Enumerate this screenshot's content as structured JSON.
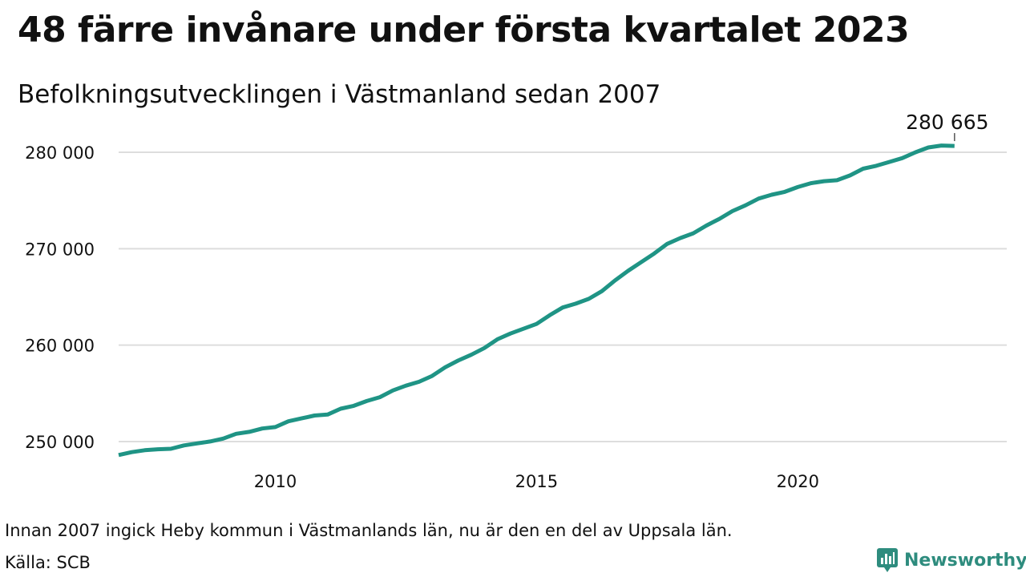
{
  "title": "48 färre invånare under första kvartalet 2023",
  "subtitle": "Befolkningsutvecklingen i Västmanland sedan 2007",
  "footnote": "Innan 2007 ingick Heby kommun i Västmanlands län, nu är den en del av Uppsala län.",
  "source": "Källa: SCB",
  "brand": {
    "name": "Newsworthy",
    "icon": "newsworthy-logo-icon",
    "color": "#2e8c7e"
  },
  "colors": {
    "line": "#1f9485",
    "grid": "#dddddd",
    "text": "#111111"
  },
  "chart_data": {
    "type": "line",
    "title": "",
    "xlabel": "",
    "ylabel": "",
    "xlim": [
      2007.0,
      2024.0
    ],
    "ylim": [
      248000,
      282000
    ],
    "x_ticks": [
      2010,
      2015,
      2020
    ],
    "x_tick_labels": [
      "2010",
      "2015",
      "2020"
    ],
    "y_ticks": [
      250000,
      260000,
      270000,
      280000
    ],
    "y_tick_labels": [
      "250 000",
      "260 000",
      "270 000",
      "280 000"
    ],
    "grid": "horizontal",
    "legend": "none",
    "annotation": {
      "x": 2023.0,
      "y": 280665,
      "text": "280 665"
    },
    "series": [
      {
        "x": [
          2007.0,
          2007.25,
          2007.5,
          2007.75,
          2008.0,
          2008.25,
          2008.5,
          2008.75,
          2009.0,
          2009.25,
          2009.5,
          2009.75,
          2010.0,
          2010.25,
          2010.5,
          2010.75,
          2011.0,
          2011.25,
          2011.5,
          2011.75,
          2012.0,
          2012.25,
          2012.5,
          2012.75,
          2013.0,
          2013.25,
          2013.5,
          2013.75,
          2014.0,
          2014.25,
          2014.5,
          2014.75,
          2015.0,
          2015.25,
          2015.5,
          2015.75,
          2016.0,
          2016.25,
          2016.5,
          2016.75,
          2017.0,
          2017.25,
          2017.5,
          2017.75,
          2018.0,
          2018.25,
          2018.5,
          2018.75,
          2019.0,
          2019.25,
          2019.5,
          2019.75,
          2020.0,
          2020.25,
          2020.5,
          2020.75,
          2021.0,
          2021.25,
          2021.5,
          2021.75,
          2022.0,
          2022.25,
          2022.5,
          2022.75,
          2023.0
        ],
        "values": [
          248600,
          248900,
          249100,
          249200,
          249250,
          249600,
          249800,
          250000,
          250300,
          250800,
          251000,
          251350,
          251500,
          252100,
          252400,
          252700,
          252800,
          253400,
          253700,
          254200,
          254600,
          255300,
          255800,
          256200,
          256800,
          257700,
          258400,
          259000,
          259700,
          260600,
          261200,
          261700,
          262200,
          263100,
          263900,
          264300,
          264800,
          265600,
          266700,
          267700,
          268600,
          269500,
          270500,
          271100,
          271600,
          272400,
          273100,
          273900,
          274500,
          275200,
          275600,
          275900,
          276400,
          276800,
          277000,
          277100,
          277600,
          278300,
          278600,
          279000,
          279400,
          280000,
          280500,
          280700,
          280665
        ]
      }
    ]
  }
}
